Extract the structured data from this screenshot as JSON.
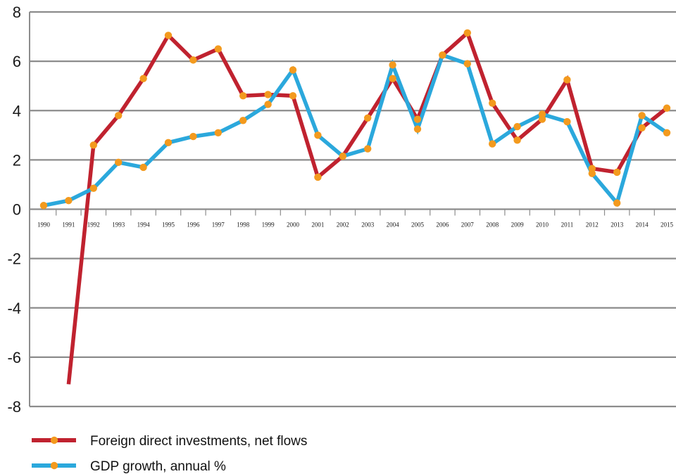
{
  "chart_data": {
    "type": "line",
    "x": [
      "1990",
      "1991",
      "1992",
      "1993",
      "1994",
      "1995",
      "1996",
      "1997",
      "1998",
      "1999",
      "2000",
      "2001",
      "2002",
      "2003",
      "2004",
      "2005",
      "2006",
      "2007",
      "2008",
      "2009",
      "2010",
      "2011",
      "2012",
      "2013",
      "2014",
      "2015"
    ],
    "yticks": [
      "8",
      "6",
      "4",
      "2",
      "0",
      "-2",
      "-4",
      "-6",
      "-8"
    ],
    "ylim": [
      -8,
      8
    ],
    "grid": true,
    "legend_position": "bottom-left",
    "series": [
      {
        "name": "Foreign direct  investments, net flows",
        "color": "#c0222f",
        "markers": false,
        "values": [
          null,
          -7.1,
          2.6,
          3.8,
          5.3,
          7.05,
          6.05,
          6.5,
          4.6,
          4.65,
          4.6,
          1.3,
          2.15,
          3.7,
          5.3,
          3.65,
          6.25,
          7.15,
          4.3,
          2.8,
          3.65,
          5.25,
          1.65,
          1.5,
          3.3,
          4.1
        ]
      },
      {
        "name": "GDP growth, annual %",
        "color": "#2ba8dc",
        "markers": true,
        "values": [
          0.15,
          0.35,
          0.85,
          1.9,
          1.7,
          2.7,
          2.95,
          3.1,
          3.6,
          4.25,
          5.65,
          3.0,
          2.15,
          2.45,
          5.85,
          3.25,
          6.25,
          5.9,
          2.65,
          3.35,
          3.85,
          3.55,
          1.45,
          0.25,
          3.8,
          3.1
        ]
      }
    ],
    "marker_color": "#f39a1e"
  }
}
